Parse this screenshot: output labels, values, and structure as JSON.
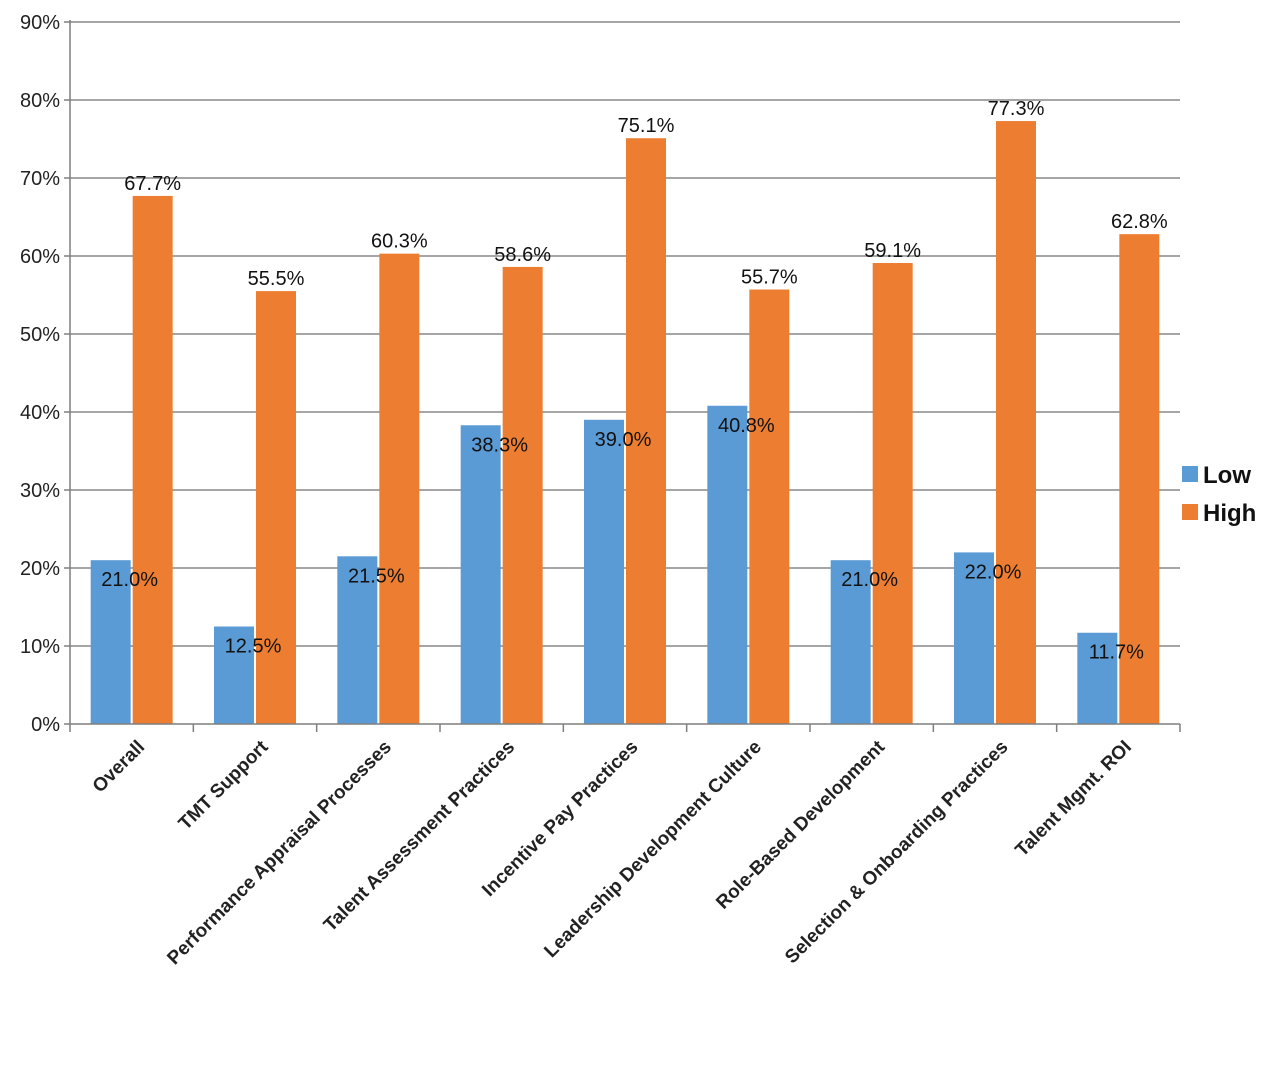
{
  "chart_data": {
    "type": "bar",
    "title": "",
    "xlabel": "",
    "ylabel": "",
    "ylim": [
      0,
      90
    ],
    "y_ticks": [
      "0%",
      "10%",
      "20%",
      "30%",
      "40%",
      "50%",
      "60%",
      "70%",
      "80%",
      "90%"
    ],
    "grid": true,
    "legend_position": "right",
    "categories": [
      "Overall",
      "TMT Support",
      "Performance Appraisal Processes",
      "Talent Assessment Practices",
      "Incentive Pay Practices",
      "Leadership Development Culture",
      "Role-Based Development",
      "Selection & Onboarding Practices",
      "Talent Mgmt. ROI"
    ],
    "series": [
      {
        "name": "Low",
        "color": "#5b9bd5",
        "values": [
          21.0,
          12.5,
          21.5,
          38.3,
          39.0,
          40.8,
          21.0,
          22.0,
          11.7
        ],
        "labels": [
          "21.0%",
          "12.5%",
          "21.5%",
          "38.3%",
          "39.0%",
          "40.8%",
          "21.0%",
          "22.0%",
          "11.7%"
        ]
      },
      {
        "name": "High",
        "color": "#ed7d31",
        "values": [
          67.7,
          55.5,
          60.3,
          58.6,
          75.1,
          55.7,
          59.1,
          77.3,
          62.8
        ],
        "labels": [
          "67.7%",
          "55.5%",
          "60.3%",
          "58.6%",
          "75.1%",
          "55.7%",
          "59.1%",
          "77.3%",
          "62.8%"
        ]
      }
    ]
  }
}
